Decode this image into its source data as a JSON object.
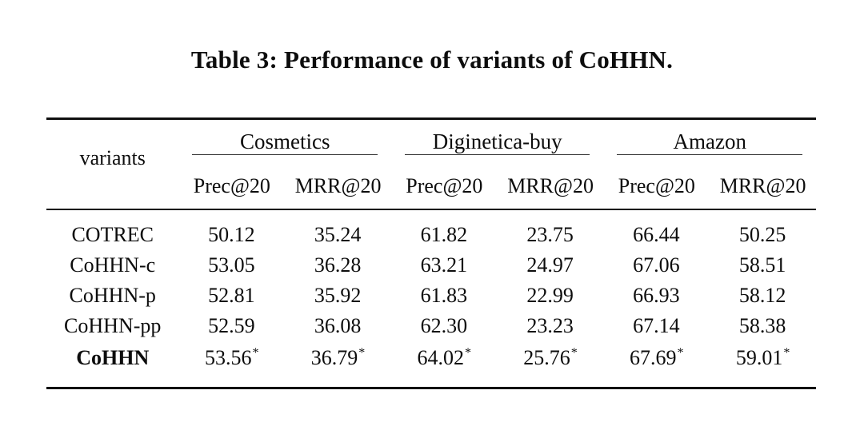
{
  "caption": "Table 3: Performance of variants of CoHHN.",
  "table": {
    "corner_label": "variants",
    "groups": [
      {
        "label": "Cosmetics"
      },
      {
        "label": "Diginetica-buy"
      },
      {
        "label": "Amazon"
      }
    ],
    "sub_headers": [
      "Prec@20",
      "MRR@20",
      "Prec@20",
      "MRR@20",
      "Prec@20",
      "MRR@20"
    ],
    "rows": [
      {
        "label": "COTREC",
        "cells": [
          {
            "v": "50.12",
            "sup": ""
          },
          {
            "v": "35.24",
            "sup": ""
          },
          {
            "v": "61.82",
            "sup": ""
          },
          {
            "v": "23.75",
            "sup": ""
          },
          {
            "v": "66.44",
            "sup": ""
          },
          {
            "v": "50.25",
            "sup": ""
          }
        ]
      },
      {
        "label": "CoHHN-c",
        "cells": [
          {
            "v": "53.05",
            "sup": ""
          },
          {
            "v": "36.28",
            "sup": ""
          },
          {
            "v": "63.21",
            "sup": ""
          },
          {
            "v": "24.97",
            "sup": ""
          },
          {
            "v": "67.06",
            "sup": ""
          },
          {
            "v": "58.51",
            "sup": ""
          }
        ]
      },
      {
        "label": "CoHHN-p",
        "cells": [
          {
            "v": "52.81",
            "sup": ""
          },
          {
            "v": "35.92",
            "sup": ""
          },
          {
            "v": "61.83",
            "sup": ""
          },
          {
            "v": "22.99",
            "sup": ""
          },
          {
            "v": "66.93",
            "sup": ""
          },
          {
            "v": "58.12",
            "sup": ""
          }
        ]
      },
      {
        "label": "CoHHN-pp",
        "cells": [
          {
            "v": "52.59",
            "sup": ""
          },
          {
            "v": "36.08",
            "sup": ""
          },
          {
            "v": "62.30",
            "sup": ""
          },
          {
            "v": "23.23",
            "sup": ""
          },
          {
            "v": "67.14",
            "sup": ""
          },
          {
            "v": "58.38",
            "sup": ""
          }
        ]
      },
      {
        "label": "CoHHN",
        "cells": [
          {
            "v": "53.56",
            "sup": "*"
          },
          {
            "v": "36.79",
            "sup": "*"
          },
          {
            "v": "64.02",
            "sup": "*"
          },
          {
            "v": "25.76",
            "sup": "*"
          },
          {
            "v": "67.69",
            "sup": "*"
          },
          {
            "v": "59.01",
            "sup": "*"
          }
        ]
      }
    ]
  },
  "colors": {
    "text": "#0d0d0d",
    "rule": "#101010",
    "background": "#ffffff"
  }
}
